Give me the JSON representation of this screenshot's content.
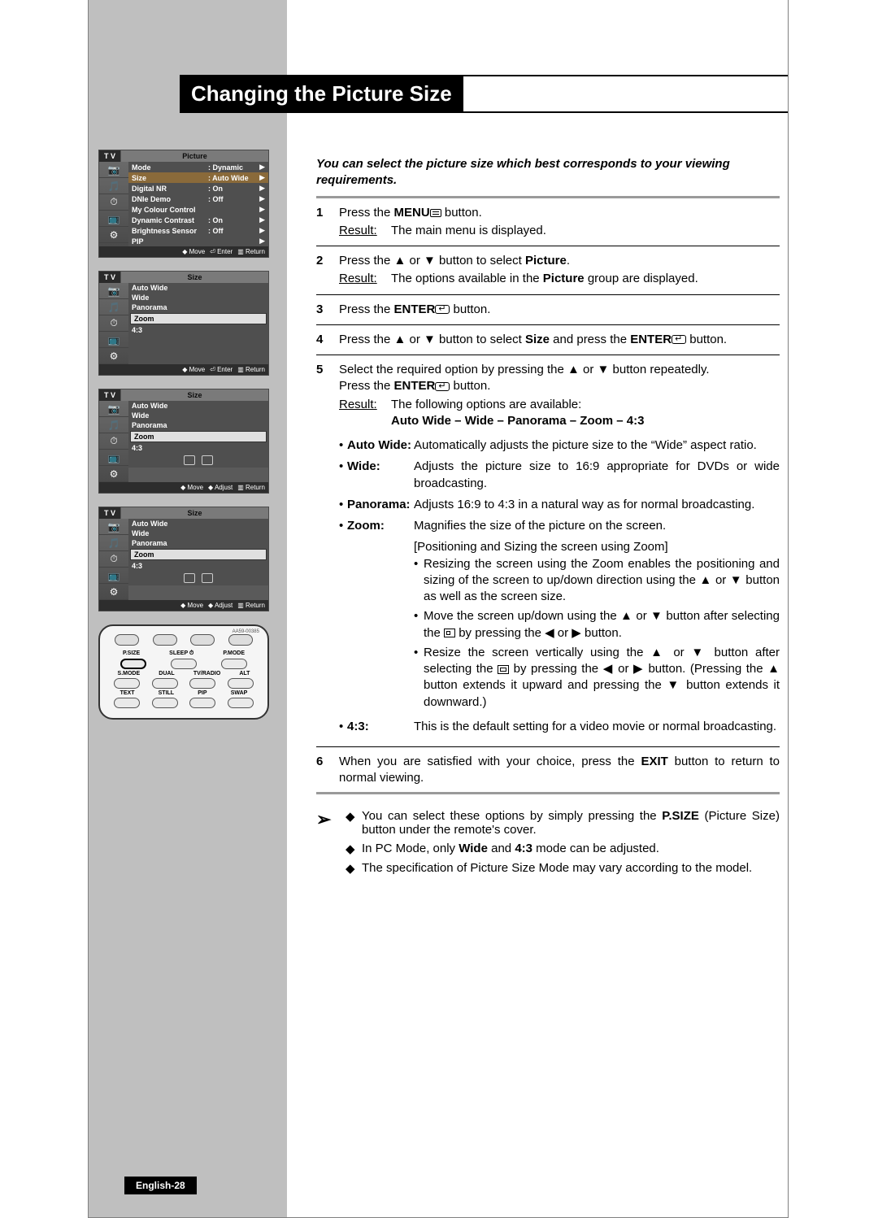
{
  "title": "Changing the Picture Size",
  "intro": "You can select the picture size which best corresponds to your viewing requirements.",
  "steps": {
    "s1": {
      "num": "1",
      "text_pre": "Press the ",
      "text_b": "MENU",
      "text_post": " button.",
      "result_label": "Result",
      "result": "The main menu is displayed."
    },
    "s2": {
      "num": "2",
      "text_pre": "Press the ▲ or ▼ button to select ",
      "text_b": "Picture",
      "text_post": ".",
      "result_label": "Result",
      "result_pre": "The options available in the ",
      "result_b": "Picture",
      "result_post": " group are displayed."
    },
    "s3": {
      "num": "3",
      "text_pre": "Press the ",
      "text_b": "ENTER",
      "text_post": " button."
    },
    "s4": {
      "num": "4",
      "text_pre": "Press the ▲ or ▼ button to select ",
      "text_b": "Size",
      "text_mid": " and press the ",
      "text_b2": "ENTER",
      "text_post": " button."
    },
    "s5": {
      "num": "5",
      "line1": "Select the required option by pressing the ▲ or ▼ button repeatedly.",
      "line2_pre": "Press the ",
      "line2_b": "ENTER",
      "line2_post": " button.",
      "result_label": "Result",
      "result_line1": "The following options are available:",
      "result_line2": "Auto Wide – Wide – Panorama – Zoom – 4:3"
    },
    "s6": {
      "num": "6",
      "text_pre": "When you are satisfied with your choice, press the ",
      "text_b": "EXIT",
      "text_post": " button to return to normal viewing."
    }
  },
  "options": {
    "auto_wide": {
      "label": "Auto Wide",
      "desc": "Automatically adjusts the picture size to the “Wide” aspect ratio."
    },
    "wide": {
      "label": "Wide",
      "desc": "Adjusts the picture size to 16:9 appropriate for DVDs or wide broadcasting."
    },
    "panorama": {
      "label": "Panorama",
      "desc": "Adjusts 16:9 to 4:3 in a natural way as for normal broadcasting."
    },
    "zoom": {
      "label": "Zoom",
      "desc": "Magnifies the size of the picture on the screen."
    },
    "four_three": {
      "label": "4:3",
      "desc": "This is the default setting for a video movie or normal broadcasting."
    }
  },
  "zoom_detail": {
    "title": "[Positioning and Sizing the screen using Zoom]",
    "b1": "Resizing the screen using the Zoom enables the positioning and sizing of the screen to up/down direction using the ▲ or ▼ button as well as the screen size.",
    "b2_pre": "Move the screen up/down using the ▲ or ▼ button after selecting the ",
    "b2_post": " by pressing the ◀ or ▶ button.",
    "b3_pre": "Resize the screen vertically using the ▲ or ▼ button after selecting the ",
    "b3_post": " by pressing the ◀ or ▶ button. (Pressing the ▲ button extends it upward and pressing the ▼ button extends it downward.)"
  },
  "notes": {
    "n1_pre": "You can select these options by simply pressing the ",
    "n1_b": "P.SIZE",
    "n1_post": " (Picture Size) button under the remote's cover.",
    "n2_pre": "In PC Mode, only ",
    "n2_b1": "Wide",
    "n2_mid": " and ",
    "n2_b2": "4:3",
    "n2_post": " mode can be adjusted.",
    "n3": "The specification of Picture Size Mode may vary according to the model."
  },
  "page_footer": "English-28",
  "osd": {
    "tv": "T V",
    "menu1": {
      "title": "Picture",
      "rows": [
        {
          "k": "Mode",
          "v": ": Dynamic"
        },
        {
          "k": "Size",
          "v": ": Auto Wide"
        },
        {
          "k": "Digital NR",
          "v": ": On"
        },
        {
          "k": "DNIe Demo",
          "v": ": Off"
        },
        {
          "k": "My Colour Control",
          "v": ""
        },
        {
          "k": "Dynamic Contrast",
          "v": ": On"
        },
        {
          "k": "Brightness Sensor",
          "v": ": Off"
        },
        {
          "k": "PIP",
          "v": ""
        }
      ],
      "foot": {
        "a": "◆ Move",
        "b": "⏎ Enter",
        "c": "▥ Return"
      }
    },
    "menu2": {
      "title": "Size",
      "rows": [
        "Auto Wide",
        "Wide",
        "Panorama",
        "Zoom",
        "4:3"
      ],
      "sel": 3,
      "foot": {
        "a": "◆ Move",
        "b": "⏎ Enter",
        "c": "▥ Return"
      }
    },
    "menu3": {
      "title": "Size",
      "rows": [
        "Auto Wide",
        "Wide",
        "Panorama",
        "Zoom",
        "4:3"
      ],
      "sel": 3,
      "foot": {
        "a": "◆ Move",
        "b": "◆ Adjust",
        "c": "▥ Return"
      }
    },
    "menu4": {
      "title": "Size",
      "rows": [
        "Auto Wide",
        "Wide",
        "Panorama",
        "Zoom",
        "4:3"
      ],
      "sel": 3,
      "foot": {
        "a": "◆ Move",
        "b": "◆ Adjust",
        "c": "▥ Return"
      }
    }
  },
  "remote": {
    "serial": "AA59-00385",
    "row1": [
      "P.SIZE",
      "SLEEP ⏱",
      "P.MODE"
    ],
    "row2": [
      "S.MODE",
      "DUAL",
      "TV/RADIO",
      "ALT"
    ],
    "row3": [
      "TEXT",
      "STILL",
      "PIP",
      "SWAP"
    ]
  },
  "colors": {
    "sidebar": "#bfbfbf",
    "title_bg": "#000000",
    "title_fg": "#ffffff",
    "hr_thick": "#9a9a9a"
  }
}
